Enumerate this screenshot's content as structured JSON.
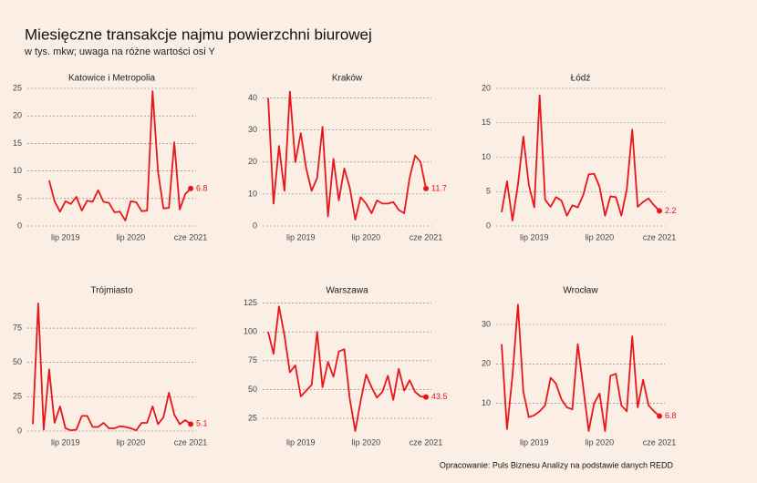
{
  "title": "Miesięczne transakcje najmu powierzchni biurowej",
  "subtitle": "w tys. mkw; uwaga na różne wartości osi Y",
  "source": "Opracowanie: Puls Biznesu Analizy na podstawie danych REDD",
  "chart_data": [
    {
      "type": "line",
      "title": "Katowice i Metropolia",
      "color": "#e8161b",
      "x": [
        "2019-01",
        "2019-02",
        "2019-03",
        "2019-04",
        "2019-05",
        "2019-06",
        "2019-07",
        "2019-08",
        "2019-09",
        "2019-10",
        "2019-11",
        "2019-12",
        "2020-01",
        "2020-02",
        "2020-03",
        "2020-04",
        "2020-05",
        "2020-06",
        "2020-07",
        "2020-08",
        "2020-09",
        "2020-10",
        "2020-11",
        "2020-12",
        "2021-01",
        "2021-02",
        "2021-03",
        "2021-04",
        "2021-05",
        "2021-06"
      ],
      "values": [
        null,
        null,
        null,
        8.3,
        4.5,
        2.6,
        4.5,
        4,
        5.3,
        2.8,
        4.6,
        4.4,
        6.5,
        4.4,
        4.2,
        2.5,
        2.6,
        1,
        4.5,
        4.3,
        2.7,
        2.8,
        24.5,
        10,
        3.2,
        3.3,
        15.2,
        3,
        5.8,
        6.8
      ],
      "xlim": [
        "2018-12",
        "2021-07"
      ],
      "xticks": [
        {
          "value": "2019-07",
          "label": "lip 2019"
        },
        {
          "value": "2020-07",
          "label": "lip 2020"
        },
        {
          "value": "2021-06",
          "label": "cze 2021"
        }
      ],
      "ylim": [
        0,
        25
      ],
      "yticks": [
        0,
        5,
        10,
        15,
        20,
        25
      ],
      "grid": true
    },
    {
      "type": "line",
      "title": "Kraków",
      "color": "#e8161b",
      "x": [
        "2019-01",
        "2019-02",
        "2019-03",
        "2019-04",
        "2019-05",
        "2019-06",
        "2019-07",
        "2019-08",
        "2019-09",
        "2019-10",
        "2019-11",
        "2019-12",
        "2020-01",
        "2020-02",
        "2020-03",
        "2020-04",
        "2020-05",
        "2020-06",
        "2020-07",
        "2020-08",
        "2020-09",
        "2020-10",
        "2020-11",
        "2020-12",
        "2021-01",
        "2021-02",
        "2021-03",
        "2021-04",
        "2021-05",
        "2021-06"
      ],
      "values": [
        40,
        7,
        25,
        11,
        42,
        20,
        29,
        18,
        11,
        15,
        31,
        3,
        21,
        8,
        18,
        12,
        2,
        9,
        7,
        4,
        8,
        7,
        7,
        7.5,
        5,
        4,
        15,
        22,
        20,
        11.7
      ],
      "xlim": [
        "2018-12",
        "2021-07"
      ],
      "xticks": [
        {
          "value": "2019-07",
          "label": "lip 2019"
        },
        {
          "value": "2020-07",
          "label": "lip 2020"
        },
        {
          "value": "2021-06",
          "label": "cze 2021"
        }
      ],
      "ylim": [
        0,
        43
      ],
      "yticks": [
        0,
        10,
        20,
        30,
        40
      ],
      "grid": true
    },
    {
      "type": "line",
      "title": "Łódź",
      "color": "#e8161b",
      "x": [
        "2019-01",
        "2019-02",
        "2019-03",
        "2019-04",
        "2019-05",
        "2019-06",
        "2019-07",
        "2019-08",
        "2019-09",
        "2019-10",
        "2019-11",
        "2019-12",
        "2020-01",
        "2020-02",
        "2020-03",
        "2020-04",
        "2020-05",
        "2020-06",
        "2020-07",
        "2020-08",
        "2020-09",
        "2020-10",
        "2020-11",
        "2020-12",
        "2021-01",
        "2021-02",
        "2021-03",
        "2021-04",
        "2021-05",
        "2021-06"
      ],
      "values": [
        2,
        6.5,
        0.8,
        6,
        13,
        6,
        2.7,
        19,
        3.8,
        2.8,
        4.2,
        3.7,
        1.5,
        3,
        2.7,
        4.5,
        7.5,
        7.6,
        5.7,
        1.5,
        4.3,
        4.2,
        1.5,
        5.3,
        14,
        2.8,
        3.5,
        4,
        3,
        2.2
      ],
      "xlim": [
        "2018-12",
        "2021-07"
      ],
      "xticks": [
        {
          "value": "2019-07",
          "label": "lip 2019"
        },
        {
          "value": "2020-07",
          "label": "lip 2020"
        },
        {
          "value": "2021-06",
          "label": "cze 2021"
        }
      ],
      "ylim": [
        0,
        20
      ],
      "yticks": [
        0,
        5,
        10,
        15,
        20
      ],
      "grid": true
    },
    {
      "type": "line",
      "title": "Trójmiasto",
      "color": "#e8161b",
      "x": [
        "2019-01",
        "2019-02",
        "2019-03",
        "2019-04",
        "2019-05",
        "2019-06",
        "2019-07",
        "2019-08",
        "2019-09",
        "2019-10",
        "2019-11",
        "2019-12",
        "2020-01",
        "2020-02",
        "2020-03",
        "2020-04",
        "2020-05",
        "2020-06",
        "2020-07",
        "2020-08",
        "2020-09",
        "2020-10",
        "2020-11",
        "2020-12",
        "2021-01",
        "2021-02",
        "2021-03",
        "2021-04",
        "2021-05",
        "2021-06"
      ],
      "values": [
        5,
        93,
        1,
        45,
        6,
        18,
        2,
        0.5,
        1,
        11,
        11,
        3,
        3,
        6,
        2,
        2,
        3.5,
        3,
        2,
        0.5,
        6,
        6,
        18,
        5,
        10,
        28,
        12,
        5,
        8,
        5.1
      ],
      "xlim": [
        "2018-12",
        "2021-07"
      ],
      "xticks": [
        {
          "value": "2019-07",
          "label": "lip 2019"
        },
        {
          "value": "2020-07",
          "label": "lip 2020"
        },
        {
          "value": "2021-06",
          "label": "cze 2021"
        }
      ],
      "ylim": [
        0,
        95
      ],
      "yticks": [
        0,
        25,
        50,
        75
      ],
      "grid": true
    },
    {
      "type": "line",
      "title": "Warszawa",
      "color": "#e8161b",
      "x": [
        "2019-01",
        "2019-02",
        "2019-03",
        "2019-04",
        "2019-05",
        "2019-06",
        "2019-07",
        "2019-08",
        "2019-09",
        "2019-10",
        "2019-11",
        "2019-12",
        "2020-01",
        "2020-02",
        "2020-03",
        "2020-04",
        "2020-05",
        "2020-06",
        "2020-07",
        "2020-08",
        "2020-09",
        "2020-10",
        "2020-11",
        "2020-12",
        "2021-01",
        "2021-02",
        "2021-03",
        "2021-04",
        "2021-05",
        "2021-06"
      ],
      "values": [
        100,
        81,
        122,
        97,
        65,
        71,
        44,
        49,
        54,
        100,
        52,
        74,
        61,
        83,
        85,
        42,
        14,
        40,
        63,
        52,
        43,
        48,
        62,
        41,
        68,
        49,
        58,
        48,
        44,
        43.5
      ],
      "xlim": [
        "2018-12",
        "2021-07"
      ],
      "xticks": [
        {
          "value": "2019-07",
          "label": "lip 2019"
        },
        {
          "value": "2020-07",
          "label": "lip 2020"
        },
        {
          "value": "2021-06",
          "label": "cze 2021"
        }
      ],
      "ylim": [
        14,
        127
      ],
      "yticks": [
        25,
        50,
        75,
        100,
        125
      ],
      "grid": true
    },
    {
      "type": "line",
      "title": "Wrocław",
      "color": "#e8161b",
      "x": [
        "2019-01",
        "2019-02",
        "2019-03",
        "2019-04",
        "2019-05",
        "2019-06",
        "2019-07",
        "2019-08",
        "2019-09",
        "2019-10",
        "2019-11",
        "2019-12",
        "2020-01",
        "2020-02",
        "2020-03",
        "2020-04",
        "2020-05",
        "2020-06",
        "2020-07",
        "2020-08",
        "2020-09",
        "2020-10",
        "2020-11",
        "2020-12",
        "2021-01",
        "2021-02",
        "2021-03",
        "2021-04",
        "2021-05",
        "2021-06"
      ],
      "values": [
        25,
        3.5,
        17,
        35,
        13,
        6.5,
        7,
        8,
        9.5,
        16.5,
        15,
        11,
        9,
        8.5,
        25,
        14,
        3,
        10,
        12.5,
        3,
        17,
        17.5,
        9.5,
        8,
        27,
        9,
        16,
        9.5,
        8,
        6.8
      ],
      "xlim": [
        "2018-12",
        "2021-07"
      ],
      "xticks": [
        {
          "value": "2019-07",
          "label": "lip 2019"
        },
        {
          "value": "2020-07",
          "label": "lip 2020"
        },
        {
          "value": "2021-06",
          "label": "cze 2021"
        }
      ],
      "ylim": [
        3,
        36
      ],
      "yticks": [
        10,
        20,
        30
      ],
      "grid": true
    }
  ]
}
